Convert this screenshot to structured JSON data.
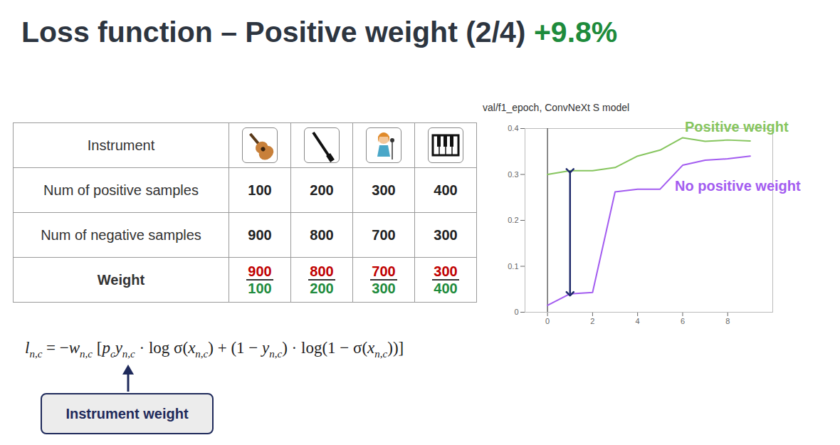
{
  "title": "Loss function – Positive weight (2/4)",
  "highlight": "+9.8%",
  "table": {
    "header": "Instrument",
    "rows": [
      {
        "label": "Num of positive samples",
        "values": [
          100,
          200,
          300,
          400
        ]
      },
      {
        "label": "Num of negative samples",
        "values": [
          900,
          800,
          700,
          300
        ]
      },
      {
        "label": "Weight",
        "weights": [
          [
            900,
            100
          ],
          [
            800,
            200
          ],
          [
            700,
            300
          ],
          [
            300,
            400
          ]
        ]
      }
    ]
  },
  "formula": [
    [
      "l",
      "n,c"
    ],
    [
      " = −"
    ],
    [
      "w",
      "n,c"
    ],
    [
      " ["
    ],
    [
      "p",
      "c"
    ],
    [
      "y",
      "n,c"
    ],
    [
      " · log σ("
    ],
    [
      "x",
      "n,c"
    ],
    [
      ") + (1 − "
    ],
    [
      "y",
      "n,c"
    ],
    [
      ") · log(1 − σ("
    ],
    [
      "x",
      "n,c"
    ],
    [
      "))]"
    ]
  ],
  "annotation": "Instrument weight",
  "chart_data": {
    "type": "line",
    "title": "val/f1_epoch, ConvNeXt S model",
    "x": [
      0,
      1,
      2,
      3,
      4,
      5,
      6,
      7,
      8,
      9
    ],
    "series": [
      {
        "name": "Positive weight",
        "color": "#86c55e",
        "values": [
          0.3,
          0.308,
          0.308,
          0.315,
          0.34,
          0.353,
          0.38,
          0.372,
          0.375,
          0.373
        ]
      },
      {
        "name": "No positive weight",
        "color": "#a35cf0",
        "values": [
          0.015,
          0.04,
          0.043,
          0.262,
          0.268,
          0.268,
          0.32,
          0.331,
          0.334,
          0.34
        ]
      }
    ],
    "xlim": [
      -1,
      10
    ],
    "xticks": [
      0,
      2,
      4,
      6,
      8
    ],
    "ylim": [
      0,
      0.4
    ],
    "yticks": [
      0,
      0.1,
      0.2,
      0.3,
      0.4
    ],
    "grid": false
  }
}
